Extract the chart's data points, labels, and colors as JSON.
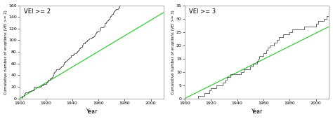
{
  "left": {
    "title": "VEI >= 2",
    "ylabel": "Cumulative number of eruptions (VEI >= 2)",
    "xlabel": "Year",
    "xlim": [
      1900,
      2010
    ],
    "ylim": [
      0,
      160
    ],
    "yticks": [
      0,
      20,
      40,
      60,
      80,
      100,
      120,
      140,
      160
    ],
    "xticks": [
      1900,
      1920,
      1940,
      1960,
      1980,
      2000
    ],
    "line_color": "#444444",
    "trend_color": "#33cc33",
    "trend_x": [
      1900,
      2010
    ],
    "trend_y": [
      0,
      148
    ]
  },
  "right": {
    "title": "VEI >= 3",
    "ylabel": "Cumulative number of eruptions (VEI >= 3)",
    "xlabel": "Year",
    "xlim": [
      1900,
      2010
    ],
    "ylim": [
      0,
      35
    ],
    "yticks": [
      0,
      5,
      10,
      15,
      20,
      25,
      30,
      35
    ],
    "xticks": [
      1900,
      1920,
      1940,
      1960,
      1980,
      2000
    ],
    "line_color": "#444444",
    "trend_color": "#33cc33",
    "trend_x": [
      1900,
      2010
    ],
    "trend_y": [
      0,
      27
    ]
  },
  "bg_color": "#ffffff",
  "fig_bg": "#ffffff"
}
